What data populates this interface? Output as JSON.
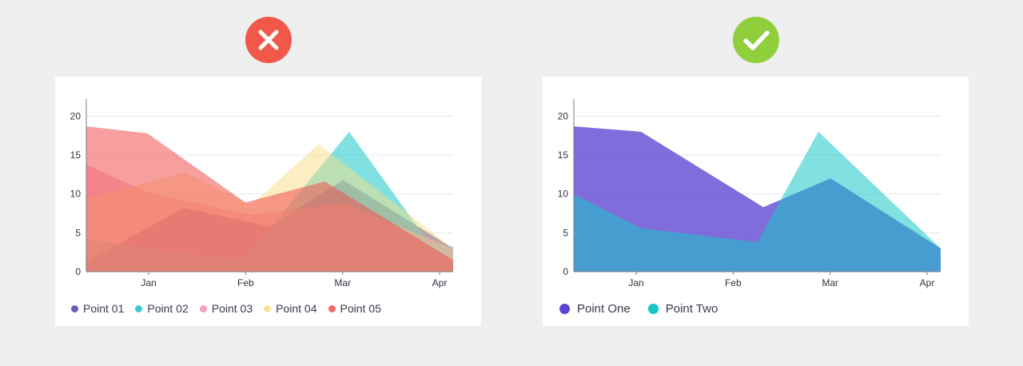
{
  "badges": {
    "bad": {
      "icon": "close-icon",
      "color": "#f2584a"
    },
    "good": {
      "icon": "check-icon",
      "color": "#90cf3c"
    }
  },
  "chart_data": [
    {
      "type": "area",
      "name": "bad-example",
      "title": "",
      "xlabel": "",
      "ylabel": "",
      "x_ticks": [
        "Jan",
        "Feb",
        "Mar",
        "Apr"
      ],
      "y_ticks": [
        0,
        5,
        10,
        15,
        20
      ],
      "ylim": [
        0,
        22
      ],
      "grid": true,
      "legend_position": "bottom-left",
      "series": [
        {
          "name": "Point 01",
          "color": "#4d3fb3",
          "opacity": 0.75,
          "points": [
            [
              0,
              1.3
            ],
            [
              0.8,
              8.2
            ],
            [
              1.5,
              5.8
            ],
            [
              2.1,
              11.8
            ],
            [
              3,
              3
            ]
          ]
        },
        {
          "name": "Point 02",
          "color": "#19c6c6",
          "opacity": 0.55,
          "points": [
            [
              0,
              4.2
            ],
            [
              0.8,
              2.3
            ],
            [
              1.3,
              1.7
            ],
            [
              2.15,
              18
            ],
            [
              2.8,
              3.8
            ],
            [
              3,
              3.2
            ]
          ]
        },
        {
          "name": "Point 03",
          "color": "#f58fb5",
          "opacity": 0.55,
          "points": [
            [
              0,
              13.8
            ],
            [
              0.5,
              10.2
            ],
            [
              1.35,
              7.3
            ],
            [
              2.1,
              8.8
            ],
            [
              3,
              3
            ]
          ]
        },
        {
          "name": "Point 04",
          "color": "#f7dd86",
          "opacity": 0.5,
          "points": [
            [
              0,
              9.4
            ],
            [
              0.8,
              12.8
            ],
            [
              1.35,
              8.6
            ],
            [
              1.9,
              16.4
            ],
            [
              3,
              3
            ]
          ]
        },
        {
          "name": "Point 05",
          "color": "#f05050",
          "opacity": 0.55,
          "points": [
            [
              0,
              18.7
            ],
            [
              0.5,
              17.8
            ],
            [
              1.3,
              8.9
            ],
            [
              1.95,
              11.6
            ],
            [
              3,
              1.5
            ]
          ]
        }
      ]
    },
    {
      "type": "area",
      "name": "good-example",
      "title": "",
      "xlabel": "",
      "ylabel": "",
      "x_ticks": [
        "Jan",
        "Feb",
        "Mar",
        "Apr"
      ],
      "y_ticks": [
        0,
        5,
        10,
        15,
        20
      ],
      "ylim": [
        0,
        22
      ],
      "grid": true,
      "legend_position": "bottom-left",
      "series": [
        {
          "name": "Point One",
          "color": "#5e42d2",
          "opacity": 0.78,
          "points": [
            [
              0,
              18.7
            ],
            [
              0.55,
              18
            ],
            [
              1.55,
              8.3
            ],
            [
              2.1,
              12
            ],
            [
              3,
              3
            ]
          ]
        },
        {
          "name": "Point Two",
          "color": "#19c6c6",
          "opacity": 0.55,
          "points": [
            [
              0,
              10
            ],
            [
              0.55,
              5.6
            ],
            [
              1.5,
              3.8
            ],
            [
              2,
              18
            ],
            [
              3,
              3
            ]
          ]
        }
      ]
    }
  ]
}
